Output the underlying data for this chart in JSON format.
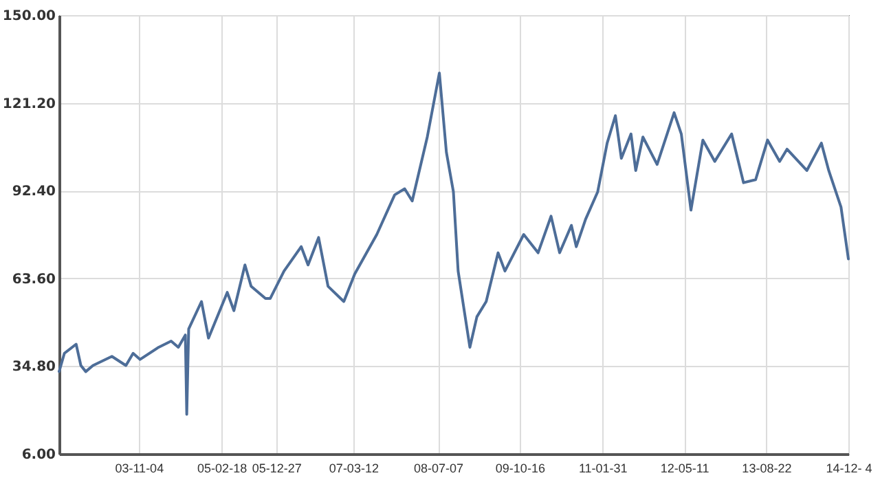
{
  "chart_data": {
    "type": "line",
    "x": [
      "2002-08-07",
      "2002-09-06",
      "2002-11-12",
      "2002-12-09",
      "2003-01-06",
      "2003-02-16",
      "2003-06-04",
      "2003-08-23",
      "2003-10-03",
      "2003-11-12",
      "2004-02-26",
      "2004-05-07",
      "2004-06-17",
      "2004-07-27",
      "2004-08-04",
      "2004-08-15",
      "2004-10-27",
      "2004-12-06",
      "2005-03-23",
      "2005-04-30",
      "2005-07-02",
      "2005-08-06",
      "2005-10-27",
      "2005-11-23",
      "2006-02-10",
      "2006-05-19",
      "2006-06-27",
      "2006-08-26",
      "2006-10-19",
      "2007-01-17",
      "2007-03-20",
      "2007-07-24",
      "2007-11-03",
      "2007-12-30",
      "2008-02-11",
      "2008-05-07",
      "2008-07-15",
      "2008-08-24",
      "2008-10-03",
      "2008-10-30",
      "2009-01-05",
      "2009-02-14",
      "2009-04-08",
      "2009-06-15",
      "2009-07-24",
      "2009-11-08",
      "2010-01-29",
      "2010-04-13",
      "2010-06-01",
      "2010-08-07",
      "2010-09-04",
      "2010-10-27",
      "2011-01-04",
      "2011-02-27",
      "2011-04-15",
      "2011-05-19",
      "2011-07-13",
      "2011-08-09",
      "2011-09-19",
      "2011-12-09",
      "2012-03-15",
      "2012-04-25",
      "2012-06-19",
      "2012-08-26",
      "2012-11-02",
      "2013-02-06",
      "2013-04-15",
      "2013-06-23",
      "2013-08-30",
      "2013-11-07",
      "2013-12-19",
      "2014-04-11",
      "2014-07-03",
      "2014-08-14",
      "2014-10-23",
      "2014-12-04"
    ],
    "series": [
      {
        "color": "#4d6d98",
        "values": [
          33,
          39,
          42,
          35,
          33,
          35,
          38,
          35,
          39,
          37,
          41,
          43,
          41,
          45,
          19,
          47,
          56,
          44,
          59,
          53,
          68,
          61,
          57,
          57,
          66,
          74,
          68,
          77,
          61,
          56,
          65,
          78,
          91,
          93,
          89,
          110,
          131,
          105,
          92,
          66,
          41,
          51,
          56,
          72,
          66,
          78,
          72,
          84,
          72,
          81,
          74,
          83,
          92,
          108,
          117,
          103,
          111,
          99,
          110,
          101,
          118,
          111,
          86,
          109,
          102,
          111,
          95,
          96,
          109,
          102,
          106,
          99,
          108,
          99,
          87,
          70
        ]
      }
    ],
    "xlim": [
      "2002-08-07",
      "2014-12-04"
    ],
    "xticks": [
      {
        "value": "2003-11-04",
        "label": "03-11-04"
      },
      {
        "value": "2005-02-18",
        "label": "05-02-18"
      },
      {
        "value": "2005-12-27",
        "label": "05-12-27"
      },
      {
        "value": "2007-03-12",
        "label": "07-03-12"
      },
      {
        "value": "2008-07-07",
        "label": "08-07-07"
      },
      {
        "value": "2009-10-16",
        "label": "09-10-16"
      },
      {
        "value": "2011-01-31",
        "label": "11-01-31"
      },
      {
        "value": "2012-05-11",
        "label": "12-05-11"
      },
      {
        "value": "2013-08-22",
        "label": "13-08-22"
      },
      {
        "value": "2014-12-04",
        "label": "14-12- 4"
      }
    ],
    "ylim": [
      6,
      150
    ],
    "yticks": [
      {
        "value": 6,
        "label": "6.00"
      },
      {
        "value": 34.8,
        "label": "34.80"
      },
      {
        "value": 63.6,
        "label": "63.60"
      },
      {
        "value": 92.4,
        "label": "92.40"
      },
      {
        "value": 121.2,
        "label": "121.20"
      },
      {
        "value": 150,
        "label": "150.00"
      }
    ],
    "grid": true,
    "marker": "none",
    "line_style": "solid"
  }
}
